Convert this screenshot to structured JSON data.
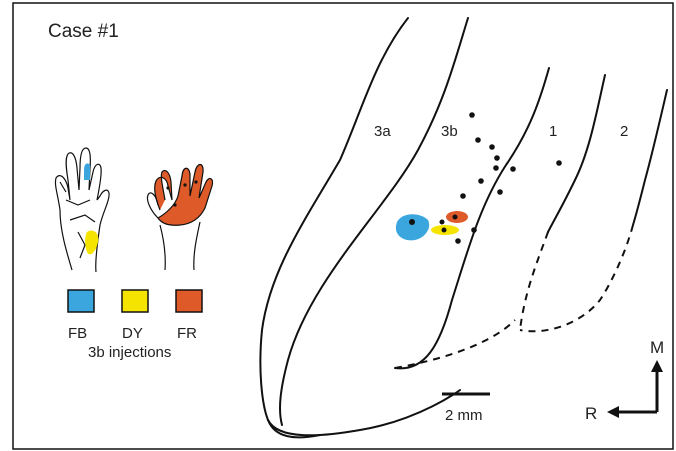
{
  "case_label": "Case #1",
  "area_labels": {
    "a3a": "3a",
    "a3b": "3b",
    "a1": "1",
    "a2": "2"
  },
  "legend": {
    "items": [
      {
        "label": "FB",
        "color": "#3aa6dd"
      },
      {
        "label": "DY",
        "color": "#f5e400"
      },
      {
        "label": "FR",
        "color": "#de5a28"
      }
    ],
    "caption": "3b injections"
  },
  "scale_bar": {
    "label": "2 mm"
  },
  "orientation": {
    "medial": "M",
    "rostral": "R"
  },
  "colors": {
    "stroke": "#111111",
    "fb": "#3aa6dd",
    "dy": "#f5e400",
    "fr": "#de5a28"
  }
}
